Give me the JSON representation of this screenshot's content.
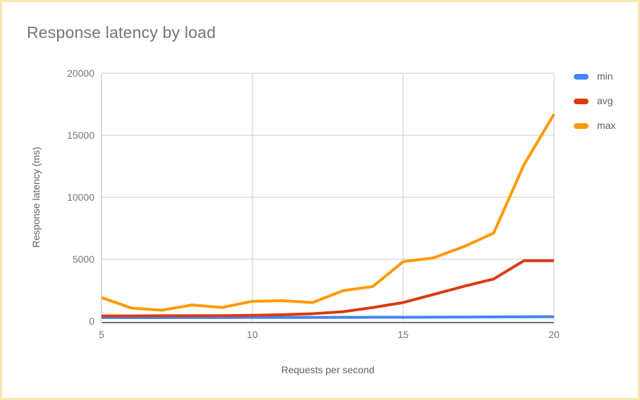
{
  "colors": {
    "card_border": "#f7e8b3",
    "grid_line": "#cccccc",
    "axis_line": "#424242",
    "left_axis_line": "#b7b7b7",
    "tick_label": "#757575",
    "title_text": "#757575",
    "axis_title_text": "#616161",
    "legend_text": "#616161"
  },
  "chart_data": {
    "type": "line",
    "title": "Response latency by load",
    "xlabel": "Requests per second",
    "ylabel": "Response latency (ms)",
    "x": [
      5,
      6,
      7,
      8,
      9,
      10,
      11,
      12,
      13,
      14,
      15,
      16,
      17,
      18,
      19,
      20
    ],
    "series": [
      {
        "name": "min",
        "color": "#4285f4",
        "values": [
          290,
          285,
          285,
          290,
          290,
          295,
          300,
          300,
          305,
          310,
          315,
          320,
          330,
          340,
          350,
          355
        ]
      },
      {
        "name": "avg",
        "color": "#dc3912",
        "values": [
          420,
          420,
          430,
          430,
          440,
          470,
          520,
          600,
          760,
          1100,
          1500,
          2150,
          2800,
          3400,
          4870,
          4870
        ]
      },
      {
        "name": "max",
        "color": "#ff9900",
        "values": [
          1900,
          1050,
          880,
          1300,
          1100,
          1600,
          1650,
          1500,
          2450,
          2800,
          4800,
          5100,
          6000,
          7100,
          12600,
          16700
        ]
      }
    ],
    "xticks": [
      5,
      10,
      15,
      20
    ],
    "yticks": [
      0,
      5000,
      10000,
      15000,
      20000
    ],
    "xlim": [
      5,
      20
    ],
    "ylim": [
      0,
      20000
    ],
    "grid": true,
    "legend_position": "right"
  }
}
